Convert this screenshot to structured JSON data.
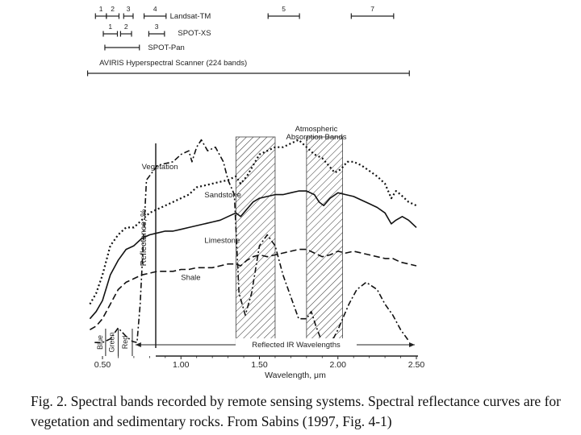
{
  "chart_data": {
    "type": "line",
    "xlabel": "Wavelength, μm",
    "ylabel": "Reflectance, %",
    "xlim": [
      0.5,
      2.5
    ],
    "x_ticks": [
      "0.50",
      "1.00",
      "1.50",
      "2.00",
      "2.50"
    ],
    "grid": false,
    "color_region_labels": [
      "Blue",
      "Green",
      "Red"
    ],
    "reflected_ir_label": "Reflected IR Wavelengths",
    "absorption_label": [
      "Atmospheric",
      "Absorption Bands"
    ],
    "absorption_bands": [
      [
        1.35,
        1.6
      ],
      [
        1.8,
        2.03
      ]
    ],
    "sensors": [
      {
        "name": "Landsat-TM",
        "bands": [
          {
            "label": "1",
            "range": [
              0.45,
              0.52
            ]
          },
          {
            "label": "2",
            "range": [
              0.52,
              0.6
            ]
          },
          {
            "label": "3",
            "range": [
              0.63,
              0.69
            ]
          },
          {
            "label": "4",
            "range": [
              0.76,
              0.9
            ]
          },
          {
            "label": "5",
            "range": [
              1.55,
              1.75
            ]
          },
          {
            "label": "7",
            "range": [
              2.08,
              2.35
            ]
          }
        ]
      },
      {
        "name": "SPOT-XS",
        "bands": [
          {
            "label": "1",
            "range": [
              0.5,
              0.59
            ]
          },
          {
            "label": "2",
            "range": [
              0.61,
              0.68
            ]
          },
          {
            "label": "3",
            "range": [
              0.79,
              0.89
            ]
          }
        ]
      },
      {
        "name": "SPOT-Pan",
        "bands": [
          {
            "label": "",
            "range": [
              0.51,
              0.73
            ]
          }
        ]
      },
      {
        "name": "AVIRIS Hyperspectral Scanner (224 bands)",
        "bands": [
          {
            "label": "",
            "range": [
              0.4,
              2.45
            ]
          }
        ]
      }
    ],
    "series": [
      {
        "name": "Vegetation",
        "style": "dash-dot",
        "x": [
          0.45,
          0.5,
          0.55,
          0.6,
          0.65,
          0.69,
          0.72,
          0.74,
          0.78,
          0.85,
          0.95,
          1.0,
          1.05,
          1.07,
          1.1,
          1.13,
          1.17,
          1.22,
          1.27,
          1.3,
          1.34,
          1.37,
          1.41,
          1.45,
          1.5,
          1.55,
          1.6,
          1.65,
          1.7,
          1.75,
          1.8,
          1.83,
          1.86,
          1.9,
          1.93,
          1.97,
          2.0,
          2.03,
          2.07,
          2.12,
          2.18,
          2.25,
          2.3,
          2.35,
          2.4,
          2.45
        ],
        "y": [
          1.5,
          1.5,
          2.5,
          5.5,
          3.2,
          1.8,
          1.5,
          12,
          46,
          50,
          51,
          53,
          54,
          51,
          55,
          57,
          54,
          55,
          51,
          46,
          42,
          15,
          9,
          15,
          28,
          31,
          28,
          20,
          14,
          8,
          8,
          10,
          6,
          1.5,
          1.2,
          2.5,
          5,
          8,
          12,
          16,
          18,
          16,
          12,
          9,
          5,
          2
        ]
      },
      {
        "name": "Sandstone",
        "style": "dotted",
        "x": [
          0.42,
          0.46,
          0.5,
          0.55,
          0.6,
          0.65,
          0.7,
          0.75,
          0.8,
          0.85,
          0.9,
          0.95,
          1.0,
          1.05,
          1.1,
          1.15,
          1.2,
          1.25,
          1.3,
          1.35,
          1.38,
          1.42,
          1.46,
          1.5,
          1.55,
          1.6,
          1.65,
          1.7,
          1.75,
          1.8,
          1.85,
          1.9,
          1.94,
          1.98,
          2.02,
          2.06,
          2.1,
          2.15,
          2.2,
          2.25,
          2.3,
          2.34,
          2.37,
          2.4,
          2.45,
          2.5
        ],
        "y": [
          12,
          15,
          20,
          28,
          31,
          33,
          33,
          35,
          37,
          38,
          39,
          40,
          41,
          42,
          44,
          44.5,
          45,
          45.5,
          46,
          47,
          45,
          47,
          50,
          53,
          54,
          55,
          55,
          56,
          57,
          55,
          53,
          52,
          50,
          48,
          49,
          51,
          51,
          50,
          48.5,
          47,
          45,
          41,
          43,
          42,
          40,
          39
        ]
      },
      {
        "name": "Limestone",
        "style": "solid",
        "x": [
          0.42,
          0.46,
          0.5,
          0.55,
          0.6,
          0.65,
          0.7,
          0.75,
          0.8,
          0.85,
          0.9,
          0.95,
          1.0,
          1.05,
          1.1,
          1.15,
          1.2,
          1.25,
          1.3,
          1.35,
          1.38,
          1.42,
          1.46,
          1.5,
          1.55,
          1.6,
          1.65,
          1.7,
          1.75,
          1.8,
          1.85,
          1.88,
          1.91,
          1.95,
          2.0,
          2.05,
          2.1,
          2.15,
          2.2,
          2.25,
          2.3,
          2.34,
          2.37,
          2.41,
          2.45,
          2.5
        ],
        "y": [
          8,
          10,
          13,
          20,
          24,
          27,
          28,
          30,
          31,
          31.5,
          32,
          32,
          32.5,
          33,
          33.5,
          34,
          34.5,
          35,
          36,
          37,
          36,
          38,
          40,
          41,
          41.5,
          42,
          42,
          42.5,
          43,
          43,
          42,
          40,
          39,
          41,
          42.5,
          42,
          41.5,
          40.5,
          39.5,
          38.5,
          37,
          34,
          35,
          36,
          35,
          33
        ]
      },
      {
        "name": "Shale",
        "style": "dashed",
        "x": [
          0.42,
          0.46,
          0.5,
          0.55,
          0.6,
          0.65,
          0.7,
          0.75,
          0.8,
          0.85,
          0.9,
          0.95,
          1.0,
          1.05,
          1.1,
          1.15,
          1.2,
          1.25,
          1.3,
          1.35,
          1.38,
          1.42,
          1.46,
          1.5,
          1.55,
          1.6,
          1.65,
          1.7,
          1.75,
          1.8,
          1.85,
          1.9,
          1.95,
          2.0,
          2.05,
          2.1,
          2.15,
          2.2,
          2.25,
          2.3,
          2.35,
          2.4,
          2.45,
          2.5
        ],
        "y": [
          5,
          6,
          8,
          12,
          16,
          18,
          19,
          20,
          20.5,
          21,
          21,
          21,
          21.5,
          21.5,
          22,
          22,
          22,
          22.5,
          23,
          23,
          22.5,
          24,
          25,
          25.5,
          25,
          25.5,
          26,
          26.5,
          27,
          27,
          26,
          25,
          25.5,
          26.5,
          26,
          26.5,
          26,
          25.5,
          25,
          24.5,
          24.5,
          23.5,
          23,
          22.5
        ]
      }
    ]
  },
  "caption": "Fig. 2. Spectral bands recorded by remote sensing systems. Spectral reflectance curves are for vegetation and sedimentary rocks. From Sabins (1997, Fig. 4-1)"
}
